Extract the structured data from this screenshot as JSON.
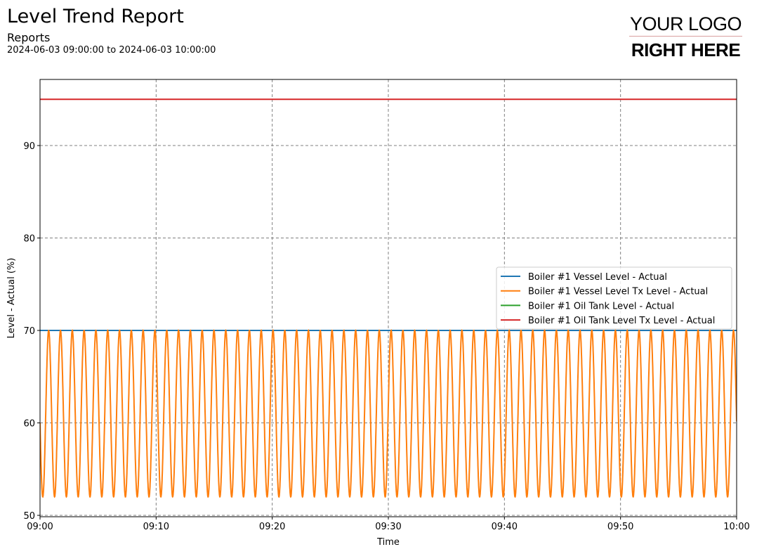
{
  "header": {
    "title": "Level Trend Report",
    "subtitle": "Reports",
    "date_range": "2024-06-03 09:00:00 to 2024-06-03 10:00:00"
  },
  "logo": {
    "line1": "YOUR LOGO",
    "line2": "RIGHT HERE"
  },
  "chart_data": {
    "type": "line",
    "xlabel": "Time",
    "ylabel": "Level - Actual (%)",
    "xlim_minutes": [
      0,
      60
    ],
    "ylim": [
      49.85,
      97.15
    ],
    "x_ticks": [
      {
        "v": 0,
        "label": "09:00"
      },
      {
        "v": 10,
        "label": "09:10"
      },
      {
        "v": 20,
        "label": "09:20"
      },
      {
        "v": 30,
        "label": "09:30"
      },
      {
        "v": 40,
        "label": "09:40"
      },
      {
        "v": 50,
        "label": "09:50"
      },
      {
        "v": 60,
        "label": "10:00"
      }
    ],
    "y_ticks": [
      50,
      60,
      70,
      80,
      90
    ],
    "grid": true,
    "legend_position": "center-right",
    "series": [
      {
        "name": "Boiler #1 Vessel Level - Actual",
        "color": "#1f77b4",
        "kind": "constant",
        "value": 70
      },
      {
        "name": "Boiler #1 Vessel Level Tx Level - Actual",
        "color": "#ff7f0e",
        "kind": "oscillation",
        "min": 52,
        "max": 70,
        "period_minutes": 1.017,
        "start_value": 60,
        "end_value": 63.5
      },
      {
        "name": "Boiler #1 Oil Tank Level - Actual",
        "color": "#2ca02c",
        "kind": "constant",
        "value": 70
      },
      {
        "name": "Boiler #1 Oil Tank Level Tx Level - Actual",
        "color": "#d62728",
        "kind": "constant",
        "value": 95
      }
    ]
  }
}
